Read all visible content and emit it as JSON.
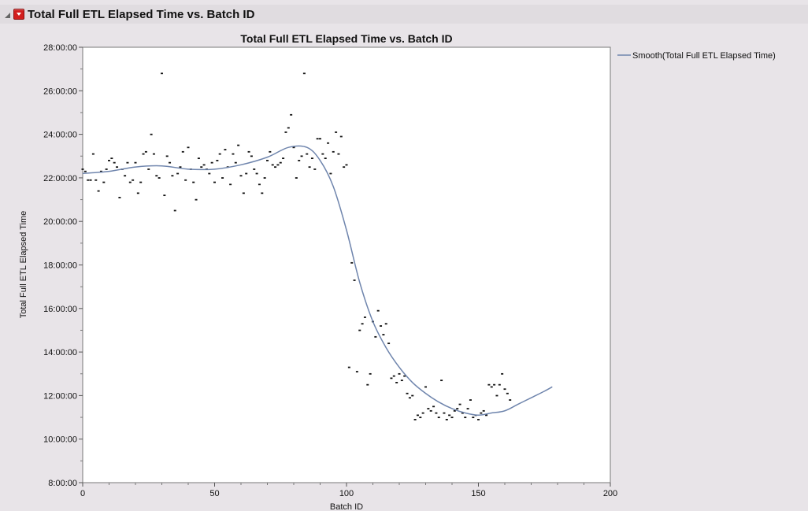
{
  "outline": {
    "title": "Total Full ETL Elapsed Time vs. Batch ID"
  },
  "colors": {
    "smooth_line": "#6f85ad",
    "points": "#111111",
    "plot_bg": "#ffffff",
    "panel_bg": "#e8e4e8"
  },
  "icons": {
    "disclosure": "disclosure-triangle-icon",
    "hotspot": "red-triangle-menu-icon"
  },
  "chart_data": {
    "type": "scatter",
    "title": "Total Full ETL Elapsed Time vs. Batch ID",
    "xlabel": "Batch ID",
    "ylabel": "Total Full ETL Elapsed Time",
    "xlim": [
      0,
      200
    ],
    "ylim": [
      8,
      28
    ],
    "x_ticks": [
      0,
      50,
      100,
      150,
      200
    ],
    "y_ticks": [
      8,
      10,
      12,
      14,
      16,
      18,
      20,
      22,
      24,
      26,
      28
    ],
    "y_tick_labels": [
      "8:00:00",
      "10:00:00",
      "12:00:00",
      "14:00:00",
      "16:00:00",
      "18:00:00",
      "20:00:00",
      "22:00:00",
      "24:00:00",
      "26:00:00",
      "28:00:00"
    ],
    "x_tick_labels": [
      "0",
      "50",
      "100",
      "150",
      "200"
    ],
    "y_units": "hours",
    "grid": false,
    "legend_position": "right",
    "points": [
      [
        0,
        22.4
      ],
      [
        1,
        22.3
      ],
      [
        2,
        21.9
      ],
      [
        3,
        21.9
      ],
      [
        4,
        23.1
      ],
      [
        5,
        21.9
      ],
      [
        6,
        21.4
      ],
      [
        7,
        22.3
      ],
      [
        8,
        21.8
      ],
      [
        9,
        22.4
      ],
      [
        10,
        22.8
      ],
      [
        11,
        22.9
      ],
      [
        12,
        22.7
      ],
      [
        13,
        22.5
      ],
      [
        14,
        21.1
      ],
      [
        15,
        22.4
      ],
      [
        16,
        22.1
      ],
      [
        17,
        22.7
      ],
      [
        18,
        21.8
      ],
      [
        19,
        21.9
      ],
      [
        20,
        22.7
      ],
      [
        21,
        21.3
      ],
      [
        22,
        21.8
      ],
      [
        23,
        23.1
      ],
      [
        24,
        23.2
      ],
      [
        25,
        22.4
      ],
      [
        26,
        24.0
      ],
      [
        27,
        23.1
      ],
      [
        28,
        22.1
      ],
      [
        29,
        22.0
      ],
      [
        30,
        26.8
      ],
      [
        31,
        21.2
      ],
      [
        32,
        23.0
      ],
      [
        33,
        22.7
      ],
      [
        34,
        22.1
      ],
      [
        35,
        20.5
      ],
      [
        36,
        22.2
      ],
      [
        37,
        22.5
      ],
      [
        38,
        23.2
      ],
      [
        39,
        21.9
      ],
      [
        40,
        23.4
      ],
      [
        41,
        22.4
      ],
      [
        42,
        21.8
      ],
      [
        43,
        21.0
      ],
      [
        44,
        22.9
      ],
      [
        45,
        22.5
      ],
      [
        46,
        22.6
      ],
      [
        47,
        22.4
      ],
      [
        48,
        22.2
      ],
      [
        49,
        22.7
      ],
      [
        50,
        21.8
      ],
      [
        51,
        22.8
      ],
      [
        52,
        23.1
      ],
      [
        53,
        22.0
      ],
      [
        54,
        23.3
      ],
      [
        55,
        22.5
      ],
      [
        56,
        21.7
      ],
      [
        57,
        23.1
      ],
      [
        58,
        22.7
      ],
      [
        59,
        23.5
      ],
      [
        60,
        22.1
      ],
      [
        61,
        21.3
      ],
      [
        62,
        22.2
      ],
      [
        63,
        23.2
      ],
      [
        64,
        23.0
      ],
      [
        65,
        22.4
      ],
      [
        66,
        22.2
      ],
      [
        67,
        21.7
      ],
      [
        68,
        21.3
      ],
      [
        69,
        22.0
      ],
      [
        70,
        22.8
      ],
      [
        71,
        23.2
      ],
      [
        72,
        22.6
      ],
      [
        73,
        22.5
      ],
      [
        74,
        22.6
      ],
      [
        75,
        22.7
      ],
      [
        76,
        22.9
      ],
      [
        77,
        24.1
      ],
      [
        78,
        24.3
      ],
      [
        79,
        24.9
      ],
      [
        80,
        23.4
      ],
      [
        81,
        22.0
      ],
      [
        82,
        22.8
      ],
      [
        83,
        23.0
      ],
      [
        84,
        26.8
      ],
      [
        85,
        23.1
      ],
      [
        86,
        22.5
      ],
      [
        87,
        22.9
      ],
      [
        88,
        22.4
      ],
      [
        89,
        23.8
      ],
      [
        90,
        23.8
      ],
      [
        91,
        23.1
      ],
      [
        92,
        22.9
      ],
      [
        93,
        23.6
      ],
      [
        94,
        22.2
      ],
      [
        95,
        23.2
      ],
      [
        96,
        24.1
      ],
      [
        97,
        23.1
      ],
      [
        98,
        23.9
      ],
      [
        99,
        22.5
      ],
      [
        100,
        22.6
      ],
      [
        101,
        13.3
      ],
      [
        102,
        18.1
      ],
      [
        103,
        17.3
      ],
      [
        104,
        13.1
      ],
      [
        105,
        15.0
      ],
      [
        106,
        15.3
      ],
      [
        107,
        15.6
      ],
      [
        108,
        12.5
      ],
      [
        109,
        13.0
      ],
      [
        110,
        15.4
      ],
      [
        111,
        14.7
      ],
      [
        112,
        15.9
      ],
      [
        113,
        15.2
      ],
      [
        114,
        14.8
      ],
      [
        115,
        15.3
      ],
      [
        116,
        14.4
      ],
      [
        117,
        12.8
      ],
      [
        118,
        12.9
      ],
      [
        119,
        12.6
      ],
      [
        120,
        13.0
      ],
      [
        121,
        12.7
      ],
      [
        122,
        12.9
      ],
      [
        123,
        12.1
      ],
      [
        124,
        11.9
      ],
      [
        125,
        12.0
      ],
      [
        126,
        10.9
      ],
      [
        127,
        11.1
      ],
      [
        128,
        11.0
      ],
      [
        129,
        11.2
      ],
      [
        130,
        12.4
      ],
      [
        131,
        11.4
      ],
      [
        132,
        11.3
      ],
      [
        133,
        11.5
      ],
      [
        134,
        11.2
      ],
      [
        135,
        11.0
      ],
      [
        136,
        12.7
      ],
      [
        137,
        11.2
      ],
      [
        138,
        10.9
      ],
      [
        139,
        11.1
      ],
      [
        140,
        11.0
      ],
      [
        141,
        11.3
      ],
      [
        142,
        11.4
      ],
      [
        143,
        11.6
      ],
      [
        144,
        11.2
      ],
      [
        145,
        11.0
      ],
      [
        146,
        11.4
      ],
      [
        147,
        11.8
      ],
      [
        148,
        11.0
      ],
      [
        149,
        11.1
      ],
      [
        150,
        10.9
      ],
      [
        151,
        11.2
      ],
      [
        152,
        11.3
      ],
      [
        153,
        11.1
      ],
      [
        154,
        12.5
      ],
      [
        155,
        12.4
      ],
      [
        156,
        12.5
      ],
      [
        157,
        12.0
      ],
      [
        158,
        12.5
      ],
      [
        159,
        13.0
      ],
      [
        160,
        12.3
      ],
      [
        161,
        12.1
      ],
      [
        162,
        11.8
      ]
    ],
    "series": [
      {
        "name": "Smooth(Total Full ETL Elapsed Time)",
        "type": "line",
        "x": [
          0,
          10,
          20,
          30,
          40,
          50,
          60,
          70,
          78,
          85,
          90,
          95,
          100,
          105,
          110,
          115,
          120,
          125,
          130,
          135,
          140,
          145,
          150,
          155,
          160,
          165,
          170,
          175,
          178
        ],
        "y": [
          22.2,
          22.3,
          22.5,
          22.55,
          22.4,
          22.4,
          22.6,
          22.95,
          23.4,
          23.4,
          22.8,
          21.6,
          19.6,
          17.2,
          15.4,
          14.2,
          13.3,
          12.6,
          12.1,
          11.7,
          11.4,
          11.2,
          11.1,
          11.2,
          11.3,
          11.6,
          11.9,
          12.2,
          12.4
        ]
      }
    ]
  }
}
